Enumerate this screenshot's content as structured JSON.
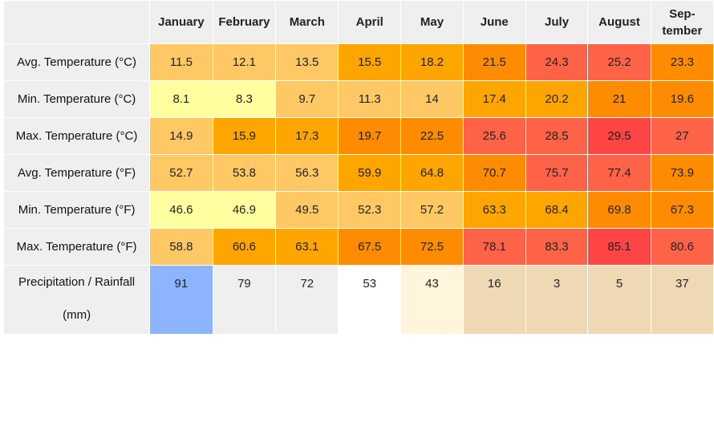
{
  "months": [
    "January",
    "February",
    "March",
    "April",
    "May",
    "June",
    "July",
    "August",
    "Sep-\ntember"
  ],
  "rows": [
    {
      "label": "Avg. Temperature (°C)",
      "values": [
        "11.5",
        "12.1",
        "13.5",
        "15.5",
        "18.2",
        "21.5",
        "24.3",
        "25.2",
        "23.3"
      ],
      "colors": [
        "#fec865",
        "#fec865",
        "#fec865",
        "#ffa500",
        "#ffa500",
        "#ff8c00",
        "#ff6347",
        "#ff6347",
        "#ff8c00"
      ]
    },
    {
      "label": "Min. Temperature (°C)",
      "values": [
        "8.1",
        "8.3",
        "9.7",
        "11.3",
        "14",
        "17.4",
        "20.2",
        "21",
        "19.6"
      ],
      "colors": [
        "#ffff9f",
        "#ffff9f",
        "#fec865",
        "#fec865",
        "#fec865",
        "#ffa500",
        "#ffa500",
        "#ff8c00",
        "#ff8c00"
      ]
    },
    {
      "label": "Max. Temperature (°C)",
      "values": [
        "14.9",
        "15.9",
        "17.3",
        "19.7",
        "22.5",
        "25.6",
        "28.5",
        "29.5",
        "27"
      ],
      "colors": [
        "#fec865",
        "#ffa500",
        "#ffa500",
        "#ff8c00",
        "#ff8c00",
        "#ff6347",
        "#ff6347",
        "#ff4444",
        "#ff6347"
      ]
    },
    {
      "label": "Avg. Temperature (°F)",
      "values": [
        "52.7",
        "53.8",
        "56.3",
        "59.9",
        "64.8",
        "70.7",
        "75.7",
        "77.4",
        "73.9"
      ],
      "colors": [
        "#fec865",
        "#fec865",
        "#fec865",
        "#ffa500",
        "#ffa500",
        "#ff8c00",
        "#ff6347",
        "#ff6347",
        "#ff8c00"
      ]
    },
    {
      "label": "Min. Temperature (°F)",
      "values": [
        "46.6",
        "46.9",
        "49.5",
        "52.3",
        "57.2",
        "63.3",
        "68.4",
        "69.8",
        "67.3"
      ],
      "colors": [
        "#ffff9f",
        "#ffff9f",
        "#fec865",
        "#fec865",
        "#fec865",
        "#ffa500",
        "#ffa500",
        "#ff8c00",
        "#ff8c00"
      ]
    },
    {
      "label": "Max. Temperature (°F)",
      "values": [
        "58.8",
        "60.6",
        "63.1",
        "67.5",
        "72.5",
        "78.1",
        "83.3",
        "85.1",
        "80.6"
      ],
      "colors": [
        "#fec865",
        "#ffa500",
        "#ffa500",
        "#ff8c00",
        "#ff8c00",
        "#ff6347",
        "#ff6347",
        "#ff4444",
        "#ff6347"
      ]
    },
    {
      "label": "Precipitation / Rainfall\n(mm)",
      "values": [
        "91",
        "79",
        "72",
        "53",
        "43",
        "16",
        "3",
        "5",
        "37"
      ],
      "colors": [
        "#8cb4ff",
        "#efefef",
        "#efefef",
        "#ffffff",
        "#fff5dc",
        "#efd9b4",
        "#efd9b4",
        "#efd9b4",
        "#efd9b4"
      ]
    }
  ]
}
